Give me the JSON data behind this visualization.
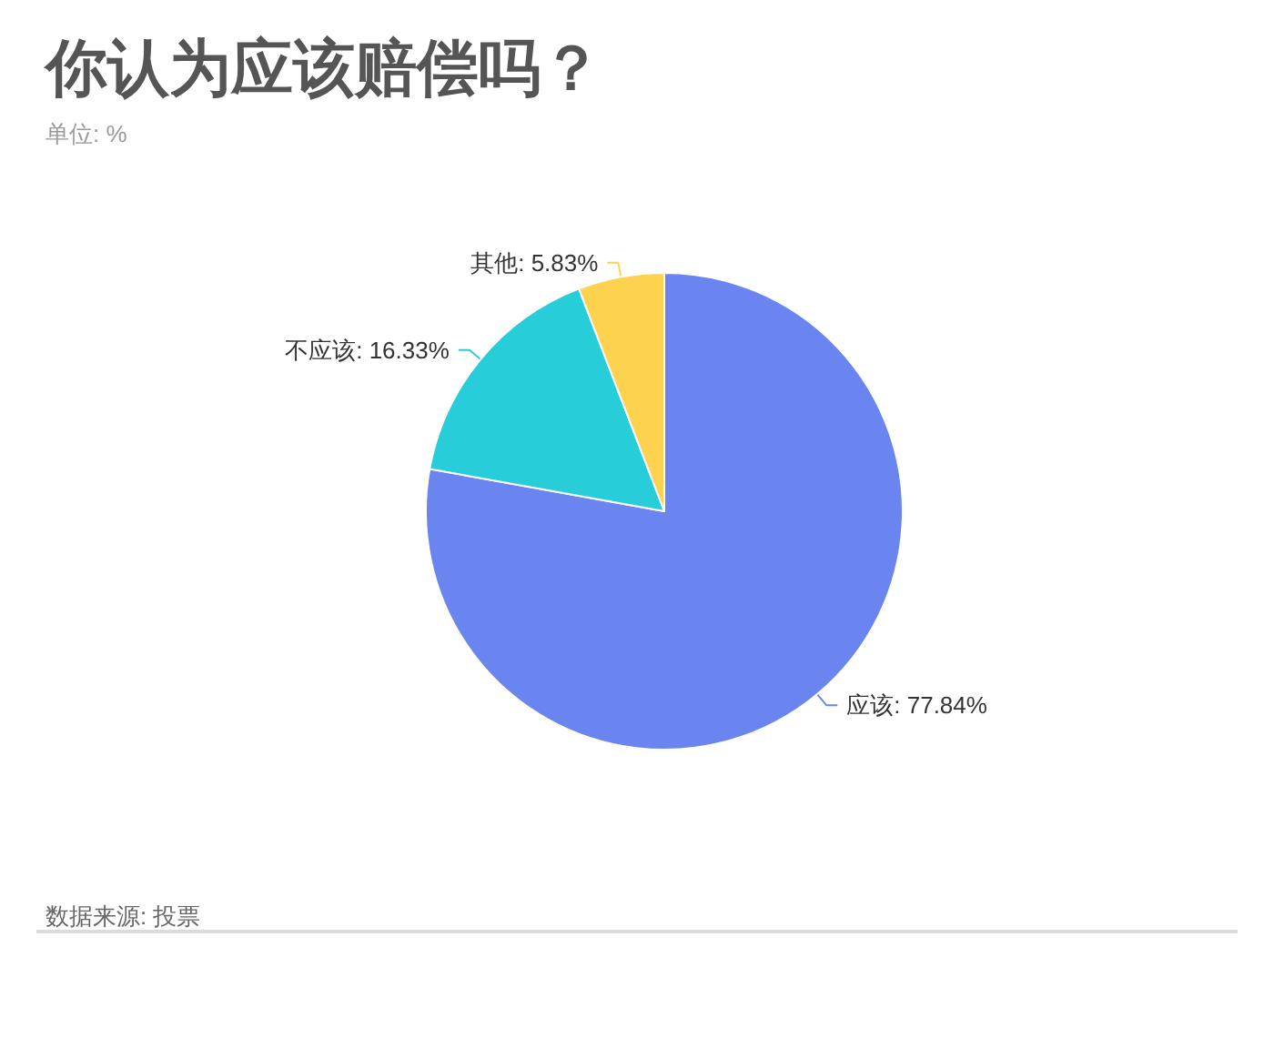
{
  "chart_data": {
    "type": "pie",
    "title": "你认为应该赔偿吗？",
    "subtitle": "单位: %",
    "categories": [
      "应该",
      "不应该",
      "其他"
    ],
    "values": [
      77.84,
      16.33,
      5.83
    ],
    "colors": [
      "#6a84f0",
      "#27cdd8",
      "#fdd24f"
    ],
    "value_labels": [
      "77.84%",
      "16.33%",
      "5.83%"
    ],
    "annotations": [
      "数据来源: 投票"
    ]
  }
}
